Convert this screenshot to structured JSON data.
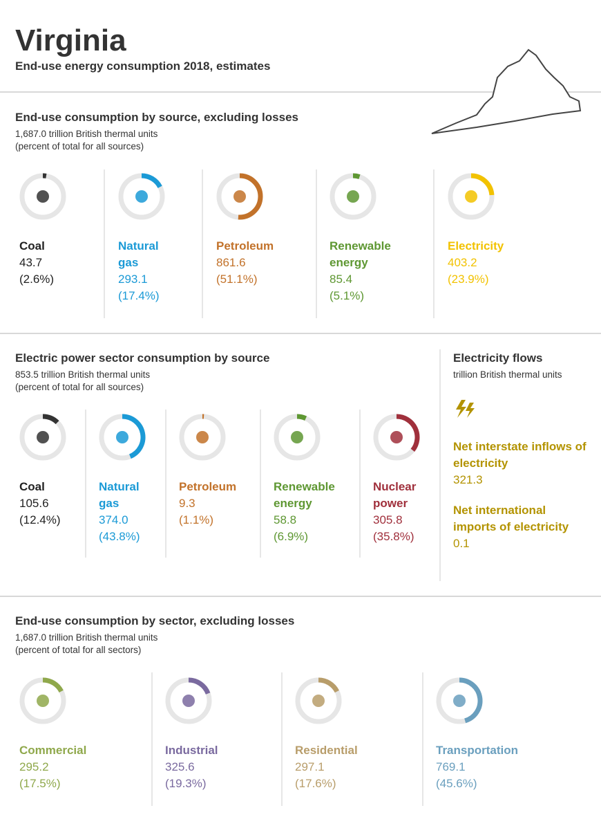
{
  "header": {
    "title": "Virginia",
    "subtitle": "End-use energy consumption 2018, estimates"
  },
  "sections": [
    {
      "title": "End-use consumption by source, excluding losses",
      "total": "1,687.0 trillion British thermal units",
      "note": "(percent of total for all sources)",
      "items": [
        {
          "name": "Coal",
          "value": "43.7",
          "percent": 2.6,
          "percent_label": "(2.6%)",
          "color": "#333333"
        },
        {
          "name": "Natural gas",
          "value": "293.1",
          "percent": 17.4,
          "percent_label": "(17.4%)",
          "color": "#1b9ad6"
        },
        {
          "name": "Petroleum",
          "value": "861.6",
          "percent": 51.1,
          "percent_label": "(51.1%)",
          "color": "#c2722a"
        },
        {
          "name": "Renewable energy",
          "value": "85.4",
          "percent": 5.1,
          "percent_label": "(5.1%)",
          "color": "#5e9732"
        },
        {
          "name": "Electricity",
          "value": "403.2",
          "percent": 23.9,
          "percent_label": "(23.9%)",
          "color": "#f2c200"
        }
      ]
    },
    {
      "title": "Electric power sector consumption by source",
      "total": "853.5 trillion British thermal units",
      "note": "(percent of total for all sources)",
      "items": [
        {
          "name": "Coal",
          "value": "105.6",
          "percent": 12.4,
          "percent_label": "(12.4%)",
          "color": "#333333"
        },
        {
          "name": "Natural gas",
          "value": "374.0",
          "percent": 43.8,
          "percent_label": "(43.8%)",
          "color": "#1b9ad6"
        },
        {
          "name": "Petroleum",
          "value": "9.3",
          "percent": 1.1,
          "percent_label": "(1.1%)",
          "color": "#c2722a"
        },
        {
          "name": "Renewable energy",
          "value": "58.8",
          "percent": 6.9,
          "percent_label": "(6.9%)",
          "color": "#5e9732"
        },
        {
          "name": "Nuclear power",
          "value": "305.8",
          "percent": 35.8,
          "percent_label": "(35.8%)",
          "color": "#a0303c"
        }
      ]
    },
    {
      "title": "End-use consumption by sector, excluding losses",
      "total": "1,687.0 trillion British thermal units",
      "note": "(percent of total for all sectors)",
      "items": [
        {
          "name": "Commercial",
          "value": "295.2",
          "percent": 17.5,
          "percent_label": "(17.5%)",
          "color": "#8fa84b"
        },
        {
          "name": "Industrial",
          "value": "325.6",
          "percent": 19.3,
          "percent_label": "(19.3%)",
          "color": "#7a6a9f"
        },
        {
          "name": "Residential",
          "value": "297.1",
          "percent": 17.6,
          "percent_label": "(17.6%)",
          "color": "#b89d6a"
        },
        {
          "name": "Transportation",
          "value": "769.1",
          "percent": 45.6,
          "percent_label": "(45.6%)",
          "color": "#6a9fbe"
        }
      ]
    }
  ],
  "flows": {
    "title": "Electricity flows",
    "units": "trillion British thermal units",
    "color": "#b39300",
    "items": [
      {
        "label": "Net interstate inflows of electricity",
        "value": "321.3"
      },
      {
        "label": "Net international imports of electricity",
        "value": "0.1"
      }
    ]
  }
}
